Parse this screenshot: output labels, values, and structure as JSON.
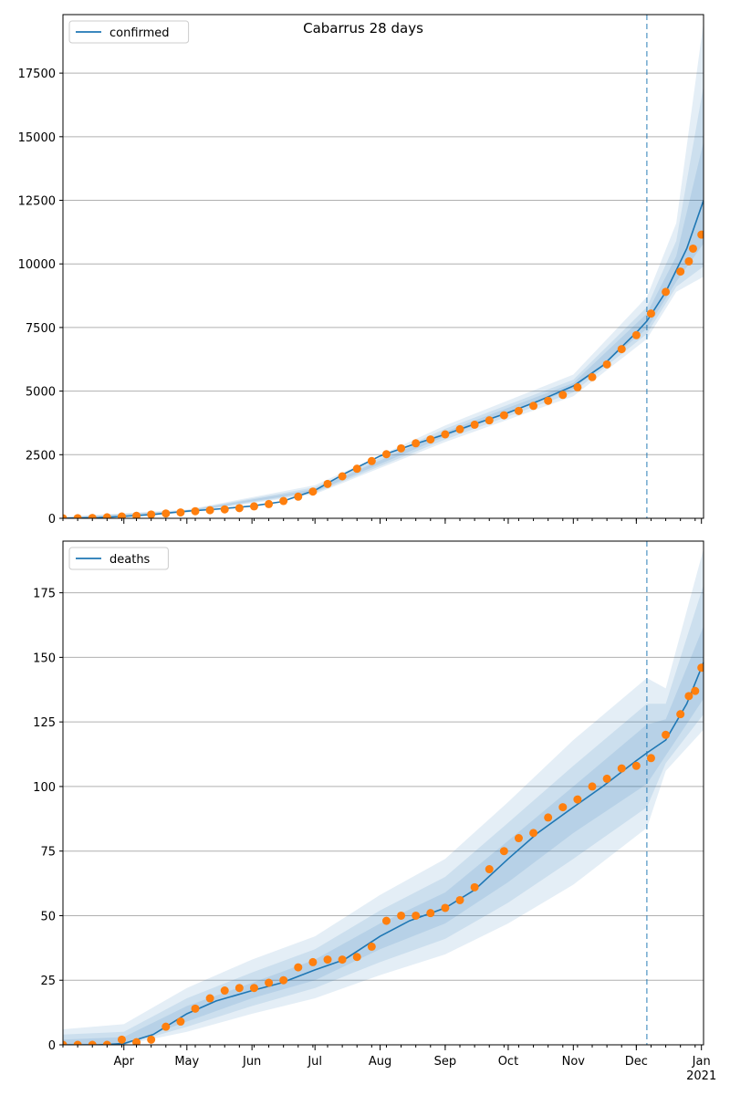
{
  "figure_title": "Cabarrus 28 days",
  "colors": {
    "model_line": "#1f77b4",
    "observed_points": "#ff7f0e",
    "band": "#1f77b4",
    "forecast_marker": "#1f77b4",
    "grid": "#b0b0b0"
  },
  "chart_data": [
    {
      "type": "line",
      "name": "confirmed-panel",
      "legend": [
        "confirmed"
      ],
      "legend_position": "top-left",
      "grid": "horizontal",
      "x_axis": "date",
      "xlim": [
        "2020-03-03",
        "2021-01-02"
      ],
      "ylim": [
        0,
        19800
      ],
      "yticks": [
        0,
        2500,
        5000,
        7500,
        10000,
        12500,
        15000,
        17500
      ],
      "forecast_start": "2020-12-06",
      "model": {
        "name": "confirmed",
        "points": [
          [
            "2020-03-03",
            0
          ],
          [
            "2020-03-20",
            30
          ],
          [
            "2020-04-01",
            80
          ],
          [
            "2020-04-15",
            150
          ],
          [
            "2020-05-01",
            280
          ],
          [
            "2020-05-15",
            360
          ],
          [
            "2020-06-01",
            480
          ],
          [
            "2020-06-15",
            650
          ],
          [
            "2020-07-01",
            1100
          ],
          [
            "2020-07-15",
            1750
          ],
          [
            "2020-08-01",
            2450
          ],
          [
            "2020-08-15",
            2850
          ],
          [
            "2020-09-01",
            3300
          ],
          [
            "2020-09-15",
            3700
          ],
          [
            "2020-10-01",
            4150
          ],
          [
            "2020-10-15",
            4600
          ],
          [
            "2020-11-01",
            5200
          ],
          [
            "2020-11-15",
            6000
          ],
          [
            "2020-12-01",
            7300
          ],
          [
            "2020-12-06",
            7750
          ],
          [
            "2020-12-15",
            8900
          ],
          [
            "2020-12-25",
            10600
          ],
          [
            "2021-01-02",
            12500
          ]
        ],
        "bands": [
          {
            "points": [
              [
                "2020-03-03",
                0,
                60
              ],
              [
                "2020-05-01",
                220,
                340
              ],
              [
                "2020-07-01",
                950,
                1300
              ],
              [
                "2020-09-01",
                3000,
                3650
              ],
              [
                "2020-11-01",
                4800,
                5650
              ],
              [
                "2020-12-06",
                7050,
                8700
              ],
              [
                "2020-12-20",
                8900,
                11600
              ],
              [
                "2021-01-02",
                9500,
                19500
              ]
            ]
          },
          {
            "points": [
              [
                "2020-03-03",
                0,
                40
              ],
              [
                "2020-05-01",
                240,
                320
              ],
              [
                "2020-07-01",
                1000,
                1220
              ],
              [
                "2020-09-01",
                3100,
                3520
              ],
              [
                "2020-11-01",
                4950,
                5450
              ],
              [
                "2020-12-06",
                7250,
                8300
              ],
              [
                "2020-12-20",
                9100,
                10900
              ],
              [
                "2021-01-02",
                9900,
                17000
              ]
            ]
          },
          {
            "points": [
              [
                "2020-03-03",
                0,
                20
              ],
              [
                "2020-05-01",
                260,
                300
              ],
              [
                "2020-07-01",
                1050,
                1150
              ],
              [
                "2020-09-01",
                3220,
                3400
              ],
              [
                "2020-11-01",
                5080,
                5320
              ],
              [
                "2020-12-06",
                7450,
                8050
              ],
              [
                "2020-12-20",
                9300,
                10300
              ],
              [
                "2021-01-02",
                10800,
                14800
              ]
            ]
          }
        ]
      },
      "observed": {
        "points": [
          [
            "2020-03-03",
            1
          ],
          [
            "2020-03-10",
            5
          ],
          [
            "2020-03-17",
            15
          ],
          [
            "2020-03-24",
            40
          ],
          [
            "2020-03-31",
            70
          ],
          [
            "2020-04-07",
            100
          ],
          [
            "2020-04-14",
            150
          ],
          [
            "2020-04-21",
            190
          ],
          [
            "2020-04-28",
            230
          ],
          [
            "2020-05-05",
            280
          ],
          [
            "2020-05-12",
            320
          ],
          [
            "2020-05-19",
            350
          ],
          [
            "2020-05-26",
            400
          ],
          [
            "2020-06-02",
            470
          ],
          [
            "2020-06-09",
            560
          ],
          [
            "2020-06-16",
            680
          ],
          [
            "2020-06-23",
            850
          ],
          [
            "2020-06-30",
            1050
          ],
          [
            "2020-07-07",
            1350
          ],
          [
            "2020-07-14",
            1650
          ],
          [
            "2020-07-21",
            1950
          ],
          [
            "2020-07-28",
            2250
          ],
          [
            "2020-08-04",
            2520
          ],
          [
            "2020-08-11",
            2750
          ],
          [
            "2020-08-18",
            2950
          ],
          [
            "2020-08-25",
            3100
          ],
          [
            "2020-09-01",
            3300
          ],
          [
            "2020-09-08",
            3500
          ],
          [
            "2020-09-15",
            3680
          ],
          [
            "2020-09-22",
            3850
          ],
          [
            "2020-09-29",
            4050
          ],
          [
            "2020-10-06",
            4220
          ],
          [
            "2020-10-13",
            4420
          ],
          [
            "2020-10-20",
            4620
          ],
          [
            "2020-10-27",
            4850
          ],
          [
            "2020-11-03",
            5150
          ],
          [
            "2020-11-10",
            5550
          ],
          [
            "2020-11-17",
            6050
          ],
          [
            "2020-11-24",
            6650
          ],
          [
            "2020-12-01",
            7200
          ],
          [
            "2020-12-08",
            8050
          ],
          [
            "2020-12-15",
            8900
          ],
          [
            "2020-12-22",
            9700
          ],
          [
            "2020-12-26",
            10100
          ],
          [
            "2020-12-28",
            10600
          ],
          [
            "2021-01-01",
            11150
          ]
        ]
      }
    },
    {
      "type": "line",
      "name": "deaths-panel",
      "legend": [
        "deaths"
      ],
      "legend_position": "top-left",
      "grid": "horizontal",
      "x_axis": "date",
      "xlim": [
        "2020-03-03",
        "2021-01-02"
      ],
      "ylim": [
        0,
        195
      ],
      "yticks": [
        0,
        25,
        50,
        75,
        100,
        125,
        150,
        175
      ],
      "xticks": [
        "Apr",
        "May",
        "Jun",
        "Jul",
        "Aug",
        "Sep",
        "Oct",
        "Nov",
        "Dec",
        "Jan"
      ],
      "xtick_sublabel": "2021",
      "forecast_start": "2020-12-06",
      "model": {
        "name": "deaths",
        "points": [
          [
            "2020-03-03",
            0
          ],
          [
            "2020-03-20",
            0
          ],
          [
            "2020-04-01",
            0.5
          ],
          [
            "2020-04-15",
            4
          ],
          [
            "2020-05-01",
            12
          ],
          [
            "2020-05-15",
            17
          ],
          [
            "2020-06-01",
            21
          ],
          [
            "2020-06-15",
            24
          ],
          [
            "2020-07-01",
            29
          ],
          [
            "2020-07-15",
            33
          ],
          [
            "2020-08-01",
            42
          ],
          [
            "2020-08-15",
            48
          ],
          [
            "2020-09-01",
            53
          ],
          [
            "2020-09-15",
            60
          ],
          [
            "2020-10-01",
            72
          ],
          [
            "2020-10-15",
            82
          ],
          [
            "2020-11-01",
            92
          ],
          [
            "2020-11-15",
            100
          ],
          [
            "2020-12-01",
            110
          ],
          [
            "2020-12-06",
            113
          ],
          [
            "2020-12-15",
            118
          ],
          [
            "2020-12-25",
            132
          ],
          [
            "2021-01-02",
            148
          ]
        ],
        "bands": [
          {
            "points": [
              [
                "2020-03-03",
                0,
                6
              ],
              [
                "2020-04-01",
                0,
                8
              ],
              [
                "2020-05-01",
                5,
                22
              ],
              [
                "2020-06-01",
                12,
                33
              ],
              [
                "2020-07-01",
                18,
                42
              ],
              [
                "2020-08-01",
                27,
                58
              ],
              [
                "2020-09-01",
                35,
                72
              ],
              [
                "2020-10-01",
                47,
                94
              ],
              [
                "2020-11-01",
                62,
                118
              ],
              [
                "2020-12-06",
                84,
                142
              ],
              [
                "2020-12-15",
                106,
                138
              ],
              [
                "2021-01-02",
                122,
                192
              ]
            ]
          },
          {
            "points": [
              [
                "2020-03-03",
                0,
                4
              ],
              [
                "2020-04-01",
                0,
                5
              ],
              [
                "2020-05-01",
                7,
                18
              ],
              [
                "2020-06-01",
                15,
                28
              ],
              [
                "2020-07-01",
                22,
                37
              ],
              [
                "2020-08-01",
                32,
                52
              ],
              [
                "2020-09-01",
                41,
                65
              ],
              [
                "2020-10-01",
                55,
                86
              ],
              [
                "2020-11-01",
                72,
                108
              ],
              [
                "2020-12-06",
                92,
                132
              ],
              [
                "2020-12-15",
                109,
                132
              ],
              [
                "2021-01-02",
                128,
                178
              ]
            ]
          },
          {
            "points": [
              [
                "2020-03-03",
                0,
                2
              ],
              [
                "2020-04-01",
                0,
                3
              ],
              [
                "2020-05-01",
                9,
                15
              ],
              [
                "2020-06-01",
                18,
                24
              ],
              [
                "2020-07-01",
                25,
                33
              ],
              [
                "2020-08-01",
                37,
                47
              ],
              [
                "2020-09-01",
                47,
                59
              ],
              [
                "2020-10-01",
                63,
                79
              ],
              [
                "2020-11-01",
                82,
                100
              ],
              [
                "2020-12-06",
                101,
                124
              ],
              [
                "2020-12-15",
                112,
                126
              ],
              [
                "2021-01-02",
                134,
                162
              ]
            ]
          }
        ]
      },
      "observed": {
        "points": [
          [
            "2020-03-03",
            0
          ],
          [
            "2020-03-10",
            0
          ],
          [
            "2020-03-17",
            0
          ],
          [
            "2020-03-24",
            0
          ],
          [
            "2020-03-31",
            2
          ],
          [
            "2020-04-07",
            1
          ],
          [
            "2020-04-14",
            2
          ],
          [
            "2020-04-21",
            7
          ],
          [
            "2020-04-28",
            9
          ],
          [
            "2020-05-05",
            14
          ],
          [
            "2020-05-12",
            18
          ],
          [
            "2020-05-19",
            21
          ],
          [
            "2020-05-26",
            22
          ],
          [
            "2020-06-02",
            22
          ],
          [
            "2020-06-09",
            24
          ],
          [
            "2020-06-16",
            25
          ],
          [
            "2020-06-23",
            30
          ],
          [
            "2020-06-30",
            32
          ],
          [
            "2020-07-07",
            33
          ],
          [
            "2020-07-14",
            33
          ],
          [
            "2020-07-21",
            34
          ],
          [
            "2020-07-28",
            38
          ],
          [
            "2020-08-04",
            48
          ],
          [
            "2020-08-11",
            50
          ],
          [
            "2020-08-18",
            50
          ],
          [
            "2020-08-25",
            51
          ],
          [
            "2020-09-01",
            53
          ],
          [
            "2020-09-08",
            56
          ],
          [
            "2020-09-15",
            61
          ],
          [
            "2020-09-22",
            68
          ],
          [
            "2020-09-29",
            75
          ],
          [
            "2020-10-06",
            80
          ],
          [
            "2020-10-13",
            82
          ],
          [
            "2020-10-20",
            88
          ],
          [
            "2020-10-27",
            92
          ],
          [
            "2020-11-03",
            95
          ],
          [
            "2020-11-10",
            100
          ],
          [
            "2020-11-17",
            103
          ],
          [
            "2020-11-24",
            107
          ],
          [
            "2020-12-01",
            108
          ],
          [
            "2020-12-08",
            111
          ],
          [
            "2020-12-15",
            120
          ],
          [
            "2020-12-22",
            128
          ],
          [
            "2020-12-26",
            135
          ],
          [
            "2020-12-29",
            137
          ],
          [
            "2021-01-01",
            146
          ]
        ]
      }
    }
  ]
}
